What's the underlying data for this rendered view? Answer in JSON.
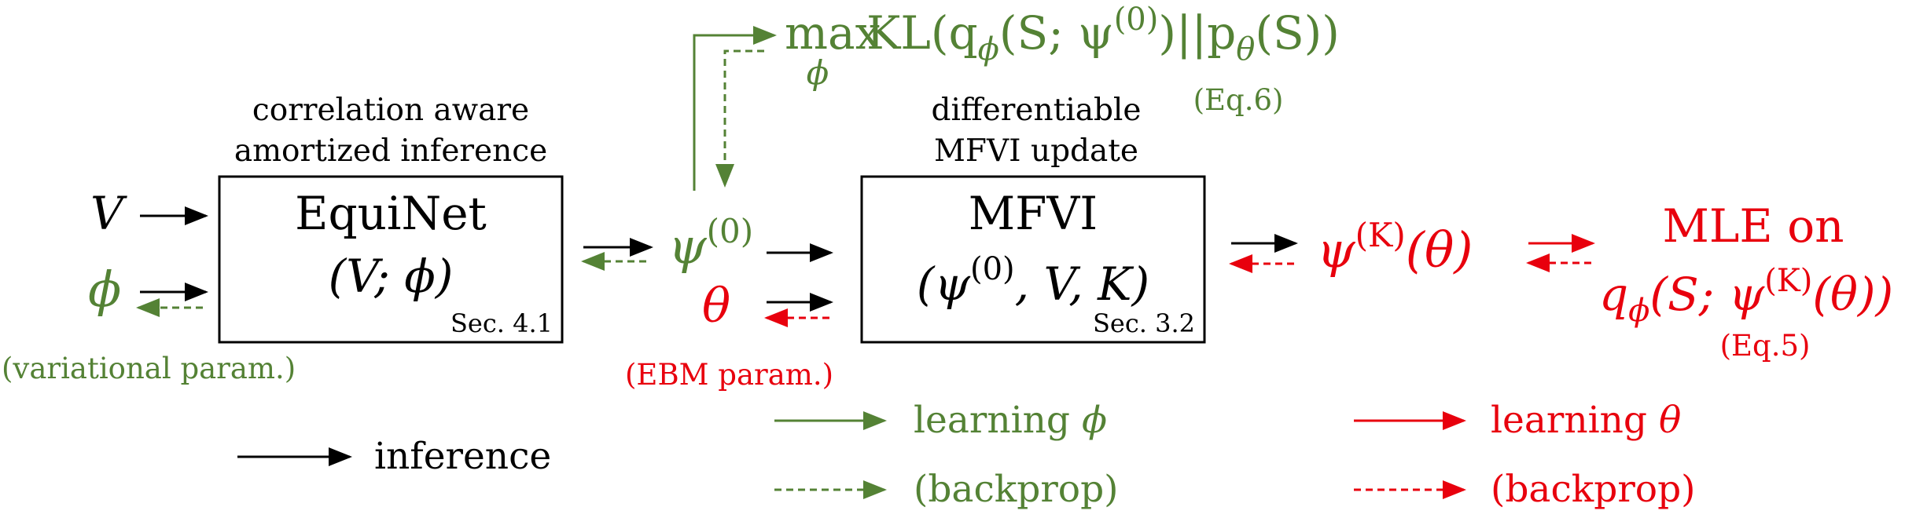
{
  "colors": {
    "black": "#000000",
    "green": "#548235",
    "red": "#e8000d"
  },
  "inputs": {
    "v": "V",
    "phi": "ϕ",
    "phi_note": "(variational param.)"
  },
  "equinet": {
    "caption_line1": "correlation aware",
    "caption_line2": "amortized inference",
    "name": "EquiNet",
    "args": "(V; ϕ)",
    "section": "Sec. 4.1"
  },
  "init": {
    "psi0": "ψ",
    "psi0_sup": "(0)",
    "theta": "θ",
    "theta_note": "(EBM param.)"
  },
  "kl_objective": {
    "max": "max",
    "max_sub": "ϕ",
    "expr_pre": " KL(q",
    "expr_q_sub": "ϕ",
    "expr_mid": "(S; ψ",
    "expr_psi_sup": "(0)",
    "expr_post": ")||p",
    "expr_p_sub": "θ",
    "expr_end": "(S))",
    "eq_ref": "(Eq.6)"
  },
  "mfvi": {
    "caption_line1": "differentiable",
    "caption_line2": "MFVI update",
    "name": "MFVI",
    "args_open": "(ψ",
    "args_sup": "(0)",
    "args_close": ", V, K)",
    "section": "Sec. 3.2"
  },
  "output": {
    "psi": "ψ",
    "psi_sup": "(K)",
    "psi_arg": "(θ)"
  },
  "mle": {
    "line1": "MLE on",
    "q": "q",
    "q_sub": "ϕ",
    "mid": "(S; ψ",
    "sup": "(K)",
    "end": "(θ))",
    "eq_ref": "(Eq.5)"
  },
  "legend": {
    "inference": "inference",
    "learning_phi_text": "learning ",
    "learning_phi_sym": "ϕ",
    "backprop_green": "(backprop)",
    "learning_theta_text": "learning ",
    "learning_theta_sym": "θ",
    "backprop_red": "(backprop)"
  }
}
